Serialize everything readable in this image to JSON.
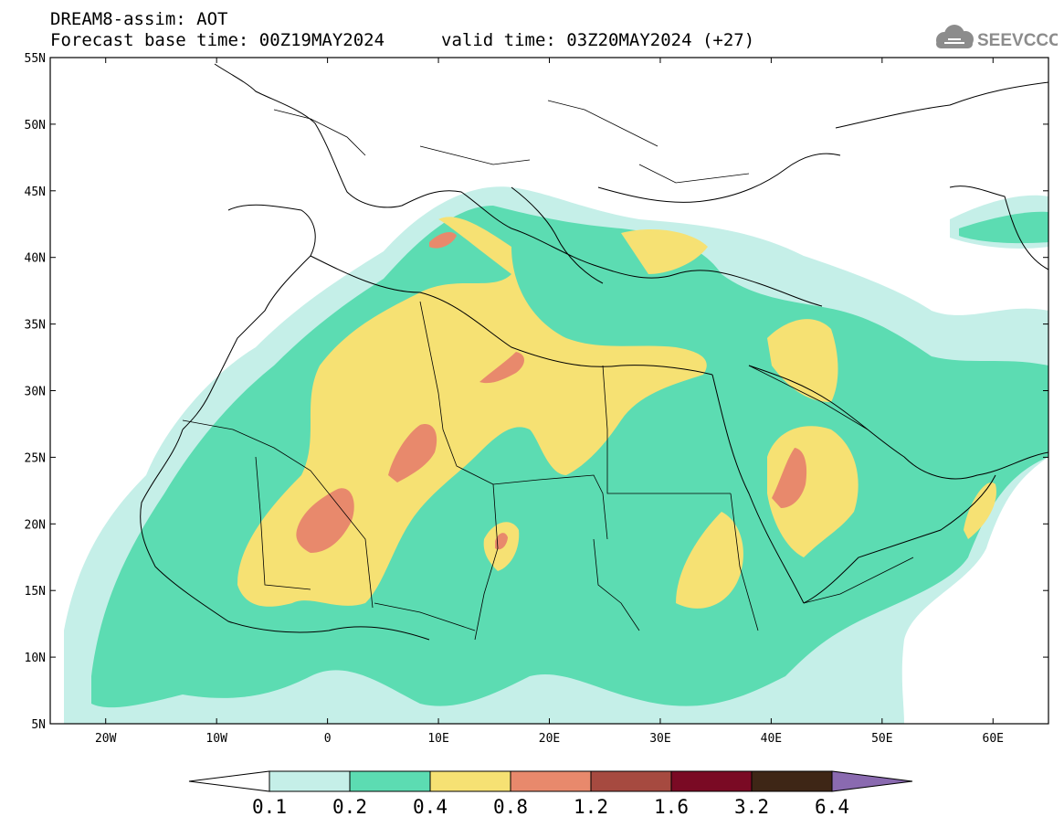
{
  "header": {
    "line1": "DREAM8-assim: AOT",
    "line2": "Forecast base time: 00Z19MAY2024",
    "valid": "valid time: 03Z20MAY2024 (+27)",
    "logo_text": "SEEVCCC"
  },
  "map": {
    "lon_range": [
      -25,
      65
    ],
    "lat_range": [
      5,
      55
    ],
    "lon_ticks": [
      {
        "value": -20,
        "label": "20W"
      },
      {
        "value": -10,
        "label": "10W"
      },
      {
        "value": 0,
        "label": "0"
      },
      {
        "value": 10,
        "label": "10E"
      },
      {
        "value": 20,
        "label": "20E"
      },
      {
        "value": 30,
        "label": "30E"
      },
      {
        "value": 40,
        "label": "40E"
      },
      {
        "value": 50,
        "label": "50E"
      },
      {
        "value": 60,
        "label": "60E"
      }
    ],
    "lat_ticks": [
      {
        "value": 55,
        "label": "55N"
      },
      {
        "value": 50,
        "label": "50N"
      },
      {
        "value": 45,
        "label": "45N"
      },
      {
        "value": 40,
        "label": "40N"
      },
      {
        "value": 35,
        "label": "35N"
      },
      {
        "value": 30,
        "label": "30N"
      },
      {
        "value": 25,
        "label": "25N"
      },
      {
        "value": 20,
        "label": "20N"
      },
      {
        "value": 15,
        "label": "15N"
      },
      {
        "value": 10,
        "label": "10N"
      },
      {
        "value": 5,
        "label": "5N"
      }
    ],
    "levels": [
      {
        "label": "0.1",
        "color": "#c5efe8"
      },
      {
        "label": "0.2",
        "color": "#5cdcb2"
      },
      {
        "label": "0.4",
        "color": "#f6e173"
      },
      {
        "label": "0.8",
        "color": "#e8896c"
      },
      {
        "label": "1.2",
        "color": "#a64a40"
      },
      {
        "label": "1.6",
        "color": "#7a0a24"
      },
      {
        "label": "3.2",
        "color": "#3e2616"
      },
      {
        "label": "6.4",
        "color": "#8a6ab0"
      }
    ]
  }
}
